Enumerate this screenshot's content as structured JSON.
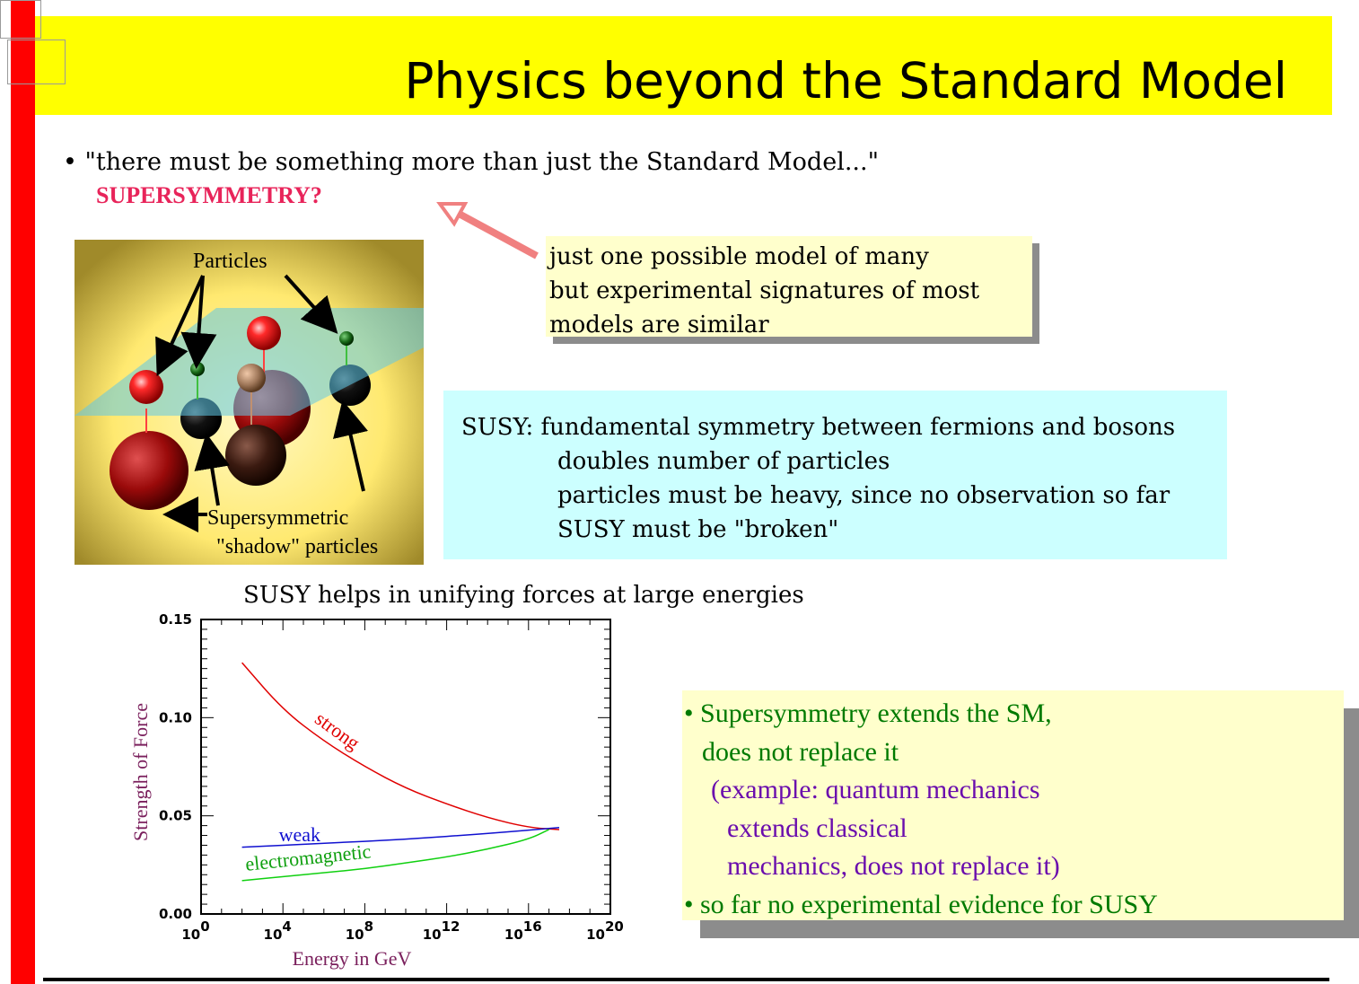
{
  "slide": {
    "title": "Physics beyond the Standard Model",
    "bullet1": "• \"there must be something more than just the Standard Model...\"",
    "susy_question": "SUPERSYMMETRY?",
    "note": [
      "just one possible model of many",
      "but experimental signatures of most",
      "models are similar"
    ],
    "susy_box": {
      "line1": "SUSY: fundamental symmetry between fermions and bosons",
      "line2": "doubles number of particles",
      "line3": "particles must be heavy, since no observation so far",
      "line4": "SUSY must be \"broken\""
    },
    "picture": {
      "label_particles": "Particles",
      "label_super": "Supersymmetric",
      "label_shadow": "\"shadow\" particles"
    },
    "chart_caption": "SUSY helps in unifying forces at large energies",
    "conclusions": {
      "line1": "• Supersymmetry extends the SM,",
      "line2": "does not replace it",
      "line3": "(example: quantum mechanics",
      "line4": "extends classical",
      "line5": "mechanics, does not replace it)",
      "line6": "• so far no experimental evidence for SUSY"
    },
    "colors": {
      "red_bar": "#ff0000",
      "title_bar": "#ffff00",
      "note_bg": "#ffffcc",
      "susy_bg": "#ccffff",
      "accent": "#e8245a"
    }
  },
  "chart_data": {
    "type": "line",
    "xlabel": "Energy in GeV",
    "ylabel": "Strength of Force",
    "xscale": "log10",
    "xlim": [
      0,
      20
    ],
    "ylim": [
      0,
      0.15
    ],
    "x_tick_labels": [
      "10^0",
      "10^4",
      "10^8",
      "10^12",
      "10^16",
      "10^20"
    ],
    "x_ticks": [
      0,
      4,
      8,
      12,
      16,
      20
    ],
    "y_tick_labels": [
      "0.00",
      "0.05",
      "0.10",
      "0.15"
    ],
    "y_ticks": [
      0,
      0.05,
      0.1,
      0.15
    ],
    "series": [
      {
        "name": "strong",
        "color": "#e00000",
        "x": [
          2,
          4,
          6,
          8,
          10,
          12,
          14,
          16,
          17.5
        ],
        "y": [
          0.128,
          0.104,
          0.088,
          0.075,
          0.064,
          0.056,
          0.049,
          0.044,
          0.043
        ]
      },
      {
        "name": "weak",
        "color": "#1010d0",
        "x": [
          2,
          6,
          10,
          14,
          17.5
        ],
        "y": [
          0.034,
          0.036,
          0.038,
          0.041,
          0.044
        ]
      },
      {
        "name": "electromagnetic",
        "color": "#10d010",
        "x": [
          2,
          4,
          6,
          8,
          10,
          12,
          14,
          16,
          17
        ],
        "y": [
          0.017,
          0.019,
          0.021,
          0.023,
          0.026,
          0.029,
          0.033,
          0.038,
          0.043
        ]
      }
    ],
    "labels": [
      "strong",
      "weak",
      "electromagnetic"
    ]
  }
}
